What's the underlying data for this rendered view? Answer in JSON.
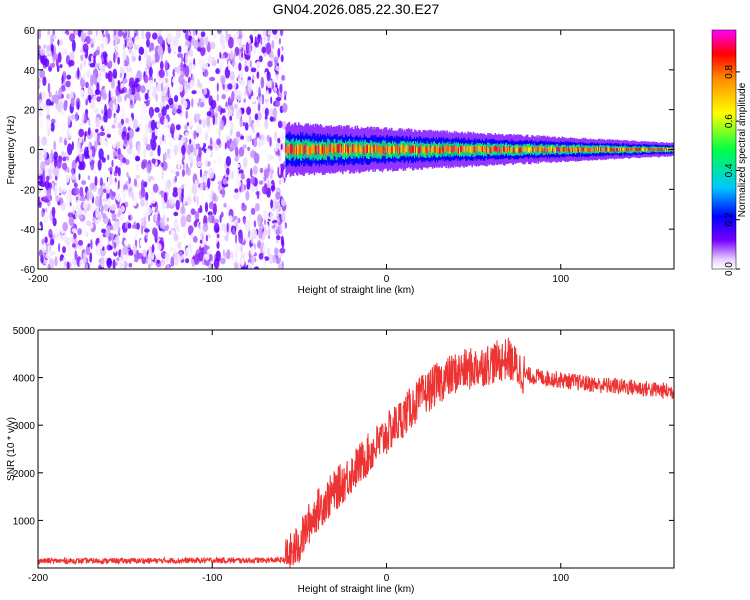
{
  "title": "GN04.2026.085.22.30.E27",
  "chart_data": [
    {
      "type": "heatmap",
      "xlabel": "Height of straight line (km)",
      "ylabel": "Frequency (Hz)",
      "xlim": [
        -200,
        165
      ],
      "ylim": [
        -60,
        60
      ],
      "xticks": [
        -200,
        -100,
        0,
        100
      ],
      "yticks": [
        -60,
        -40,
        -20,
        0,
        20,
        40,
        60
      ],
      "colorbar": {
        "label": "Normalized spectral amplitude",
        "range": [
          0,
          0.97
        ],
        "ticks": [
          0,
          0.2,
          0.4,
          0.6,
          0.8
        ],
        "tick_labels": [
          "0.0",
          "0.2",
          "0.4",
          "0.6",
          "0.8"
        ]
      },
      "regions": [
        {
          "description": "noise",
          "x_range": [
            -200,
            -58
          ],
          "freq_range": [
            -60,
            60
          ],
          "amplitude_range": [
            0.0,
            0.15
          ]
        },
        {
          "description": "signal",
          "x_range": [
            -58,
            165
          ],
          "center_freq_hz": 0,
          "halfwidth_hz": [
            8,
            2
          ],
          "peak_amplitude": 0.95
        }
      ],
      "grid": false
    },
    {
      "type": "line",
      "xlabel": "Height of straight line (km)",
      "ylabel": "SNR (10 * v/v)",
      "xlim": [
        -200,
        165
      ],
      "ylim": [
        0,
        5000
      ],
      "xticks": [
        -200,
        -100,
        0,
        100
      ],
      "yticks": [
        1000,
        2000,
        3000,
        4000,
        5000
      ],
      "series": [
        {
          "color": "#ee3333",
          "x": [
            -200,
            -150,
            -100,
            -70,
            -58,
            -50,
            -45,
            -40,
            -30,
            -20,
            -10,
            0,
            10,
            20,
            30,
            40,
            50,
            60,
            70,
            75,
            80,
            90,
            100,
            120,
            140,
            165
          ],
          "y": [
            150,
            150,
            160,
            160,
            170,
            500,
            900,
            1200,
            1600,
            2000,
            2400,
            2800,
            3200,
            3600,
            3900,
            4100,
            4200,
            4300,
            4400,
            4200,
            4050,
            4000,
            3950,
            3850,
            3800,
            3700
          ]
        }
      ],
      "grid": false
    }
  ]
}
